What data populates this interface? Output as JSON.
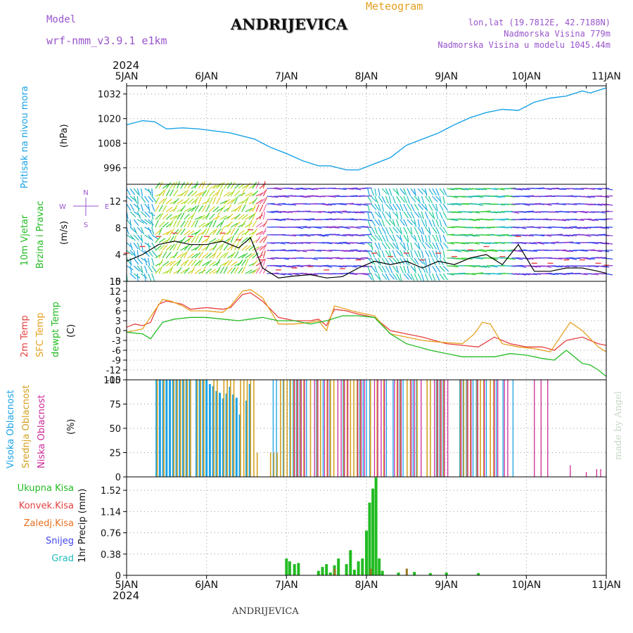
{
  "header": {
    "model_label": "Model",
    "model_name": "wrf-nmm_v3.9.1  e1km",
    "station": "ANDRIJEVICA",
    "meteogram": "Meteogram",
    "lonlat": "lon,lat (19.7812E, 42.7188N)",
    "elevation": "Nadmorska Visina 779m",
    "model_elevation": "Nadmorska Visina u modelu 1045.44m",
    "year_top": "2024",
    "year_bottom": "2024",
    "footer_station": "ANDRIJEVICA",
    "credit": "made by Angel"
  },
  "colors": {
    "pressure": "#1aa3e6",
    "wind_label": "#22bb22",
    "temp2m": "#e64040",
    "sfc": "#e6a020",
    "dewpt": "#22bb22",
    "high_cloud": "#1aa3e6",
    "mid_cloud": "#d4a020",
    "low_cloud": "#cc2a99",
    "total_precip": "#22bb22",
    "conv_precip": "#e64040",
    "frozen_precip": "#e67020",
    "snow": "#4444ee",
    "hail": "#22bbbb",
    "purple": "#9955cc"
  },
  "chart_data": [
    {
      "type": "line",
      "name": "pressure",
      "ylabel": [
        "Pritisak na nivou mora",
        "(hPa)"
      ],
      "yticks": [
        996,
        1008,
        1020,
        1032
      ],
      "ylim": [
        988,
        1036
      ],
      "x_days": [
        "5JAN",
        "6JAN",
        "7JAN",
        "8JAN",
        "9JAN",
        "10JAN",
        "11JAN"
      ],
      "grid": true,
      "series": [
        {
          "x": [
            0,
            0.1,
            0.2,
            0.35,
            0.5,
            0.7,
            0.9,
            1.1,
            1.3,
            1.6,
            1.8,
            2.0,
            2.2,
            2.4,
            2.55,
            2.75,
            2.9,
            3.1,
            3.3,
            3.5,
            3.7,
            3.9,
            4.1,
            4.3,
            4.5,
            4.7,
            4.9,
            5.1,
            5.3,
            5.5,
            5.7,
            5.8,
            6.0
          ],
          "y": [
            1017,
            1018,
            1019,
            1018.5,
            1015,
            1015.5,
            1015,
            1014,
            1013,
            1010,
            1006,
            1003,
            999.5,
            997,
            997,
            995,
            995,
            998,
            1001,
            1007,
            1010,
            1013,
            1017,
            1020.5,
            1023,
            1024.5,
            1024,
            1028,
            1030,
            1031,
            1033.5,
            1032.5,
            1035
          ]
        }
      ]
    },
    {
      "type": "line",
      "name": "wind",
      "ylabel": [
        "10m Vjetar",
        "Brzina i Pravac",
        "(m/s)"
      ],
      "compass": [
        "N",
        "W",
        "E",
        "S"
      ],
      "yticks": [
        0,
        4,
        8,
        12
      ],
      "ylim": [
        0,
        14.5
      ],
      "series": [
        {
          "name": "speed",
          "x": [
            0,
            0.2,
            0.4,
            0.6,
            0.8,
            1.0,
            1.2,
            1.4,
            1.55,
            1.7,
            1.9,
            2.1,
            2.3,
            2.5,
            2.7,
            2.9,
            3.1,
            3.3,
            3.5,
            3.7,
            3.9,
            4.1,
            4.3,
            4.5,
            4.7,
            4.9,
            5.1,
            5.3,
            5.5,
            5.7,
            5.9,
            6.0
          ],
          "y": [
            3,
            4,
            5.5,
            6,
            5.5,
            5.5,
            6,
            5,
            6.5,
            2,
            0.5,
            0.8,
            1,
            0.5,
            0.7,
            2,
            3,
            2.5,
            3,
            2,
            3,
            2.5,
            3.5,
            4,
            2.5,
            5.5,
            1.5,
            1.5,
            2,
            2,
            1.5,
            1.2
          ]
        }
      ]
    },
    {
      "type": "line",
      "name": "temperature",
      "ylabel": [
        "2m Temp",
        "SFC Temp",
        "dewpt Temp",
        "(C)"
      ],
      "yticks": [
        -15,
        -12,
        -9,
        -6,
        -3,
        0,
        3,
        6,
        9,
        12,
        15
      ],
      "ylim": [
        -15,
        15
      ],
      "series": [
        {
          "name": "2m Temp",
          "x": [
            0,
            0.1,
            0.2,
            0.3,
            0.4,
            0.5,
            0.7,
            0.8,
            1.0,
            1.2,
            1.3,
            1.45,
            1.55,
            1.7,
            1.9,
            2.1,
            2.3,
            2.4,
            2.5,
            2.6,
            2.75,
            2.9,
            3.1,
            3.3,
            3.5,
            3.7,
            4.0,
            4.2,
            4.4,
            4.6,
            4.8,
            5.0,
            5.2,
            5.35,
            5.5,
            5.7,
            5.9,
            6.0
          ],
          "y": [
            1,
            2,
            1.5,
            2.5,
            8,
            9,
            8,
            6.5,
            7,
            6.5,
            7,
            11,
            11.5,
            9,
            4,
            3,
            3,
            3.5,
            1.5,
            6.5,
            6,
            5,
            4,
            0,
            -1,
            -2,
            -4,
            -4.5,
            -5,
            -2,
            -4,
            -5,
            -5,
            -6,
            -3,
            -2,
            -4,
            -4.5
          ]
        },
        {
          "name": "SFC Temp",
          "x": [
            0,
            0.2,
            0.35,
            0.45,
            0.55,
            0.7,
            0.8,
            1.0,
            1.2,
            1.3,
            1.45,
            1.55,
            1.7,
            1.9,
            2.1,
            2.3,
            2.4,
            2.5,
            2.6,
            2.75,
            2.9,
            3.1,
            3.3,
            3.5,
            3.7,
            3.9,
            4.2,
            4.35,
            4.45,
            4.55,
            4.7,
            4.9,
            5.1,
            5.3,
            5.45,
            5.55,
            5.7,
            5.9,
            6.0
          ],
          "y": [
            -0.5,
            0.5,
            6,
            9.5,
            9,
            7.5,
            6,
            6,
            5.5,
            7.5,
            12,
            12.5,
            10,
            2,
            2,
            2.5,
            3,
            0,
            7.5,
            6.5,
            5.5,
            4.5,
            -1,
            -2,
            -3,
            -3.5,
            -4,
            -1,
            2.5,
            2,
            -4,
            -5,
            -5.5,
            -6.5,
            -1,
            2.5,
            0,
            -5,
            -6.5
          ]
        },
        {
          "name": "dewpt Temp",
          "x": [
            0,
            0.2,
            0.3,
            0.45,
            0.6,
            0.8,
            1.0,
            1.2,
            1.4,
            1.55,
            1.7,
            1.9,
            2.1,
            2.3,
            2.5,
            2.7,
            2.9,
            3.1,
            3.3,
            3.5,
            3.8,
            4.0,
            4.2,
            4.4,
            4.6,
            4.8,
            5.0,
            5.2,
            5.35,
            5.5,
            5.6,
            5.7,
            5.8,
            5.9,
            6.0
          ],
          "y": [
            -0.5,
            -1,
            -2.5,
            2.5,
            3.5,
            4,
            4,
            3.5,
            3,
            3.5,
            4,
            3,
            3,
            2,
            3,
            4.5,
            4.5,
            4,
            -1,
            -4,
            -6,
            -7,
            -8,
            -8,
            -8,
            -7,
            -7.5,
            -8.5,
            -9,
            -6,
            -8,
            -10,
            -10.5,
            -12,
            -14
          ]
        }
      ]
    },
    {
      "type": "bar",
      "name": "clouds",
      "ylabel": [
        "Visoka Oblacnost",
        "Srednja Oblacnost",
        "Niska Oblacnost",
        "(%)"
      ],
      "yticks": [
        0,
        25,
        50,
        75,
        100
      ],
      "ylim": [
        0,
        100
      ]
    },
    {
      "type": "bar",
      "name": "precip",
      "ylabel": [
        "1hr Precip (mm)"
      ],
      "legend": [
        "Ukupna Kisa",
        "Konvek.Kisa",
        "Zaledj.Kisa",
        "Snijeg",
        "Grad"
      ],
      "yticks": [
        0,
        0.38,
        0.76,
        1.14,
        1.52
      ],
      "ylim": [
        0,
        1.76
      ],
      "series": [
        {
          "name": "Ukupna Kisa",
          "x": [
            2.0,
            2.04,
            2.1,
            2.15,
            2.4,
            2.45,
            2.5,
            2.55,
            2.6,
            2.65,
            2.75,
            2.8,
            2.85,
            2.9,
            2.95,
            3.0,
            3.04,
            3.08,
            3.12,
            3.16,
            3.2,
            3.4,
            3.6,
            3.8,
            4.0,
            4.4
          ],
          "y": [
            0.3,
            0.25,
            0.2,
            0.22,
            0.08,
            0.15,
            0.2,
            0.05,
            0.18,
            0.3,
            0.2,
            0.45,
            0.1,
            0.25,
            0.3,
            0.8,
            1.3,
            1.55,
            1.75,
            0.3,
            0.08,
            0.05,
            0.06,
            0.04,
            0.05,
            0.04
          ]
        }
      ]
    }
  ]
}
